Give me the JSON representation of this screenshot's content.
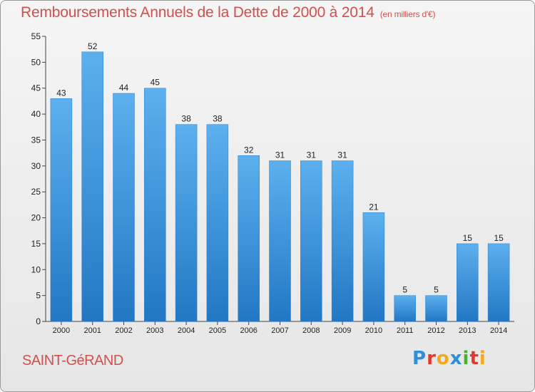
{
  "title": "Remboursements Annuels de la Dette de 2000 à 2014",
  "subtitle": "(en milliers d'€)",
  "commune": "SAINT-GéRAND",
  "logo": {
    "letters": [
      "P",
      "r",
      "o",
      "x",
      "i",
      "t",
      "i"
    ],
    "colors": [
      "#2e8fd6",
      "#e0392b",
      "#f2a91c",
      "#2e8fd6",
      "#4caf30",
      "#e0392b",
      "#f2a91c"
    ]
  },
  "chart_data": {
    "type": "bar",
    "title": "Remboursements Annuels de la Dette de 2000 à 2014",
    "categories": [
      "2000",
      "2001",
      "2002",
      "2003",
      "2004",
      "2005",
      "2006",
      "2007",
      "2008",
      "2009",
      "2010",
      "2011",
      "2012",
      "2013",
      "2014"
    ],
    "values": [
      43,
      52,
      44,
      45,
      38,
      38,
      32,
      31,
      31,
      31,
      21,
      5,
      5,
      15,
      15
    ],
    "ylim": [
      0,
      55
    ],
    "yticks": [
      0,
      5,
      10,
      15,
      20,
      25,
      30,
      35,
      40,
      45,
      50,
      55
    ],
    "grid": false,
    "bar_color": "#3a8fd8",
    "bar_color_light": "#5cb0ee",
    "label_color": "#222222",
    "title_color": "#d0504e"
  }
}
